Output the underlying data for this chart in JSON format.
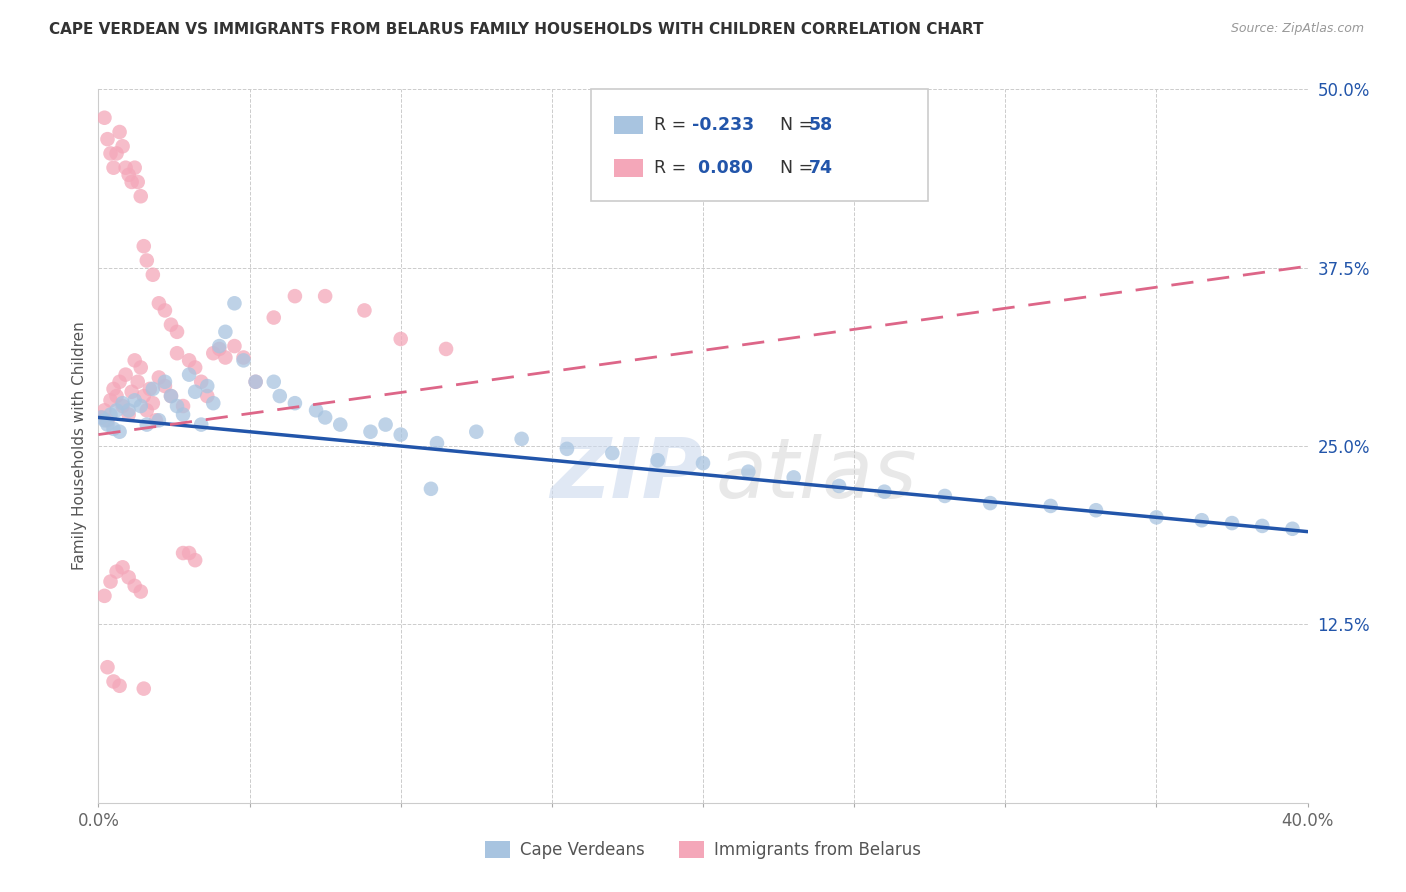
{
  "title": "CAPE VERDEAN VS IMMIGRANTS FROM BELARUS FAMILY HOUSEHOLDS WITH CHILDREN CORRELATION CHART",
  "source": "Source: ZipAtlas.com",
  "ylabel": "Family Households with Children",
  "xlim": [
    0.0,
    0.4
  ],
  "ylim": [
    0.0,
    0.5
  ],
  "ytick_positions": [
    0.125,
    0.25,
    0.375,
    0.5
  ],
  "ytick_labels": [
    "12.5%",
    "25.0%",
    "37.5%",
    "50.0%"
  ],
  "blue_label": "Cape Verdeans",
  "pink_label": "Immigrants from Belarus",
  "blue_R": -0.233,
  "blue_N": 58,
  "pink_R": 0.08,
  "pink_N": 74,
  "blue_color": "#a8c4e0",
  "pink_color": "#f4a7b9",
  "blue_line_color": "#2255aa",
  "pink_line_color": "#dd6688",
  "background_color": "#ffffff",
  "blue_line_x0": 0.0,
  "blue_line_y0": 0.27,
  "blue_line_x1": 0.4,
  "blue_line_y1": 0.19,
  "pink_line_x0": 0.0,
  "pink_line_y0": 0.258,
  "pink_line_x1": 0.4,
  "pink_line_y1": 0.376,
  "blue_scatter_x": [
    0.001,
    0.002,
    0.003,
    0.004,
    0.005,
    0.006,
    0.007,
    0.008,
    0.01,
    0.012,
    0.014,
    0.016,
    0.018,
    0.02,
    0.022,
    0.024,
    0.026,
    0.028,
    0.03,
    0.032,
    0.034,
    0.036,
    0.038,
    0.04,
    0.042,
    0.045,
    0.048,
    0.052,
    0.058,
    0.065,
    0.072,
    0.08,
    0.09,
    0.1,
    0.112,
    0.125,
    0.14,
    0.155,
    0.17,
    0.185,
    0.2,
    0.215,
    0.23,
    0.245,
    0.26,
    0.28,
    0.295,
    0.315,
    0.33,
    0.35,
    0.365,
    0.375,
    0.385,
    0.395,
    0.06,
    0.075,
    0.095,
    0.11
  ],
  "blue_scatter_y": [
    0.27,
    0.268,
    0.265,
    0.272,
    0.262,
    0.275,
    0.26,
    0.28,
    0.275,
    0.282,
    0.278,
    0.265,
    0.29,
    0.268,
    0.295,
    0.285,
    0.278,
    0.272,
    0.3,
    0.288,
    0.265,
    0.292,
    0.28,
    0.32,
    0.33,
    0.35,
    0.31,
    0.295,
    0.295,
    0.28,
    0.275,
    0.265,
    0.26,
    0.258,
    0.252,
    0.26,
    0.255,
    0.248,
    0.245,
    0.24,
    0.238,
    0.232,
    0.228,
    0.222,
    0.218,
    0.215,
    0.21,
    0.208,
    0.205,
    0.2,
    0.198,
    0.196,
    0.194,
    0.192,
    0.285,
    0.27,
    0.265,
    0.22
  ],
  "pink_scatter_x": [
    0.001,
    0.002,
    0.003,
    0.004,
    0.005,
    0.006,
    0.007,
    0.008,
    0.009,
    0.01,
    0.011,
    0.012,
    0.013,
    0.014,
    0.015,
    0.016,
    0.017,
    0.018,
    0.019,
    0.02,
    0.022,
    0.024,
    0.026,
    0.028,
    0.03,
    0.032,
    0.034,
    0.036,
    0.038,
    0.04,
    0.042,
    0.045,
    0.048,
    0.052,
    0.058,
    0.065,
    0.075,
    0.088,
    0.1,
    0.115,
    0.002,
    0.003,
    0.004,
    0.005,
    0.006,
    0.007,
    0.008,
    0.009,
    0.01,
    0.011,
    0.012,
    0.013,
    0.014,
    0.015,
    0.016,
    0.018,
    0.02,
    0.022,
    0.024,
    0.026,
    0.028,
    0.03,
    0.032,
    0.002,
    0.004,
    0.006,
    0.008,
    0.01,
    0.012,
    0.014,
    0.003,
    0.005,
    0.007,
    0.015
  ],
  "pink_scatter_y": [
    0.27,
    0.275,
    0.268,
    0.282,
    0.29,
    0.285,
    0.295,
    0.278,
    0.3,
    0.272,
    0.288,
    0.31,
    0.295,
    0.305,
    0.285,
    0.275,
    0.29,
    0.28,
    0.268,
    0.298,
    0.292,
    0.285,
    0.315,
    0.278,
    0.31,
    0.305,
    0.295,
    0.285,
    0.315,
    0.318,
    0.312,
    0.32,
    0.312,
    0.295,
    0.34,
    0.355,
    0.355,
    0.345,
    0.325,
    0.318,
    0.48,
    0.465,
    0.455,
    0.445,
    0.455,
    0.47,
    0.46,
    0.445,
    0.44,
    0.435,
    0.445,
    0.435,
    0.425,
    0.39,
    0.38,
    0.37,
    0.35,
    0.345,
    0.335,
    0.33,
    0.175,
    0.175,
    0.17,
    0.145,
    0.155,
    0.162,
    0.165,
    0.158,
    0.152,
    0.148,
    0.095,
    0.085,
    0.082,
    0.08
  ]
}
